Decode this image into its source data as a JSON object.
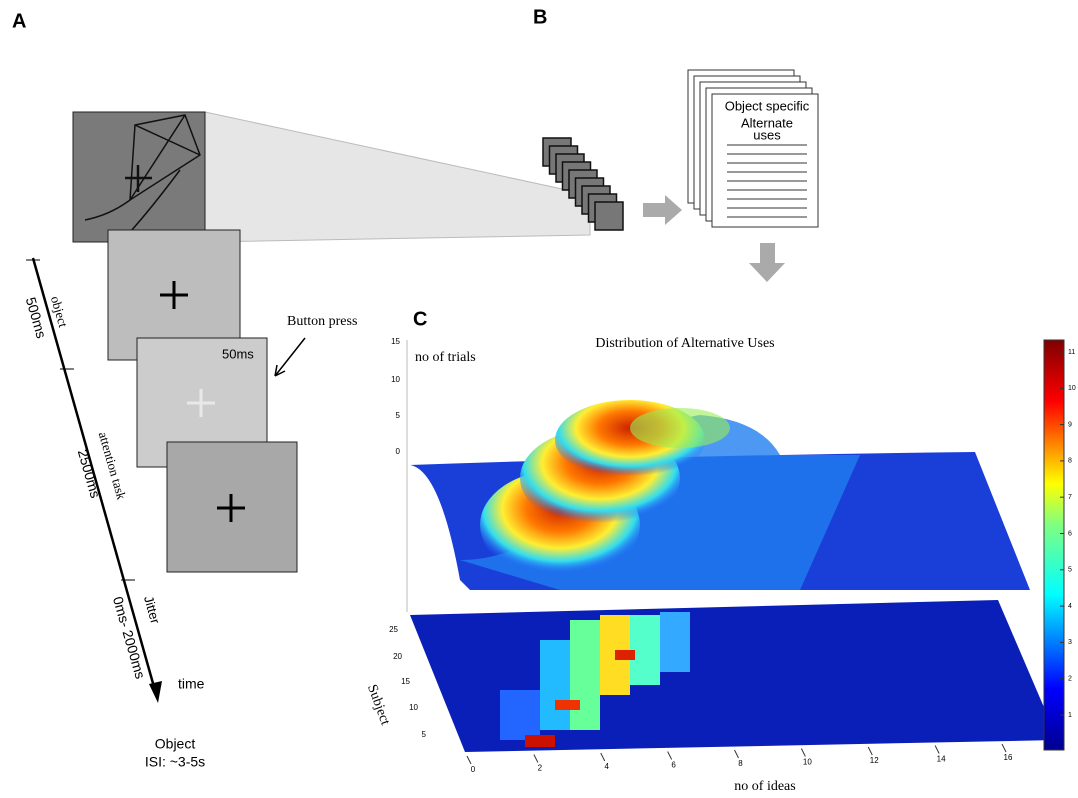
{
  "panels": {
    "a": "A",
    "b": "B",
    "c": "C"
  },
  "panel_a": {
    "timeline": [
      "object",
      "500ms",
      "attention task",
      "2500ms",
      "Jitter",
      "0ms- 2000ms"
    ],
    "time": "time",
    "button_press": "Button press",
    "flash": "50ms",
    "object": "Object",
    "isi": "ISI: ~3-5s"
  },
  "panel_b": {
    "document": [
      "Object specific",
      "Alternate",
      "uses"
    ]
  },
  "panel_c": {
    "title": "Distribution of Alternative Uses",
    "z_label": "no of trials",
    "z_ticks": [
      15,
      10,
      5,
      0
    ],
    "y_label": "Subject",
    "y_ticks": [
      25,
      20,
      15,
      10,
      5
    ],
    "x_label": "no of ideas",
    "x_ticks": [
      0,
      2,
      4,
      6,
      8,
      10,
      12,
      14,
      16
    ],
    "colorbar_ticks": [
      11,
      10,
      9,
      8,
      7,
      6,
      5,
      4,
      3,
      2,
      1
    ]
  }
}
